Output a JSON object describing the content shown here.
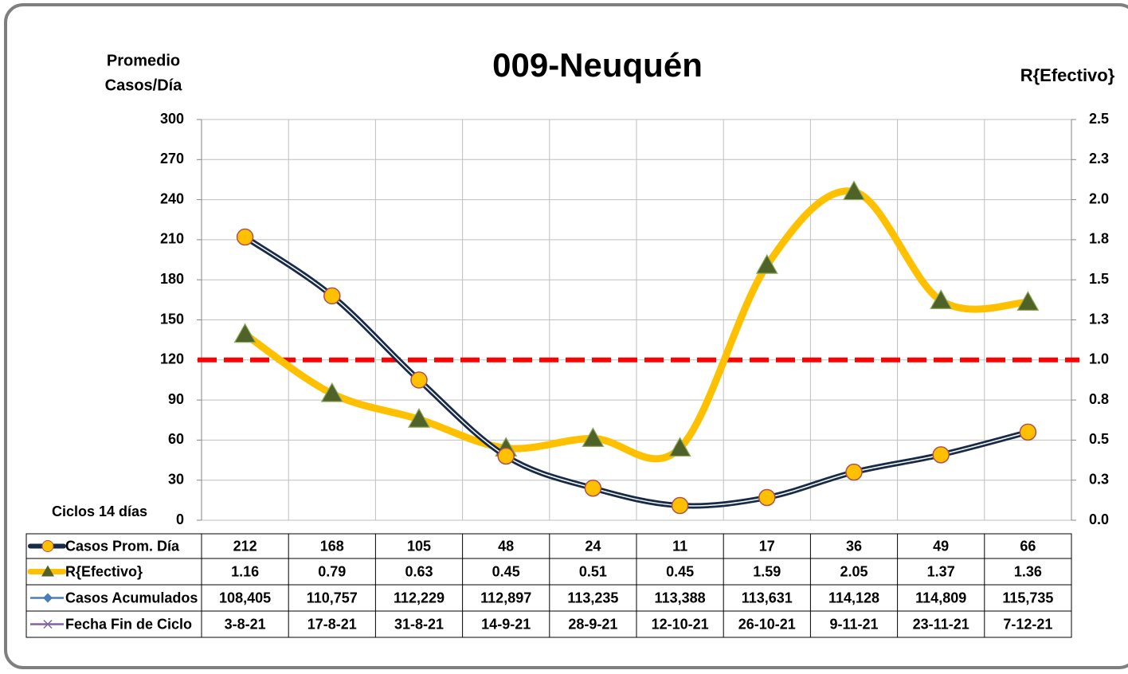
{
  "chart_data": {
    "type": "line",
    "title": "009-Neuquén",
    "y_label": [
      "Promedio",
      "Casos/Día"
    ],
    "y2_label": "R{Efectivo}",
    "x_label": "Ciclos 14 días",
    "categories": [
      "3-8-21",
      "17-8-21",
      "31-8-21",
      "14-9-21",
      "28-9-21",
      "12-10-21",
      "26-10-21",
      "9-11-21",
      "23-11-21",
      "7-12-21"
    ],
    "category_legend": {
      "name": "Fecha Fin de Ciclo",
      "color": "#8064a2"
    },
    "series": [
      {
        "name": "Casos Prom. Día",
        "color": "#172a48",
        "marker_color": "#ffc000",
        "values": [
          212,
          168,
          105,
          48,
          24,
          11,
          17,
          36,
          49,
          66
        ]
      },
      {
        "name": "R{Efectivo}",
        "axis": "y2",
        "color": "#ffc000",
        "marker_color": "#4f6228",
        "values": [
          1.16,
          0.79,
          0.63,
          0.45,
          0.51,
          0.45,
          1.59,
          2.05,
          1.37,
          1.36
        ]
      },
      {
        "name": "Casos Acumulados",
        "color": "#4a7ebb",
        "plotted": false,
        "values": [
          108405,
          110757,
          112229,
          112897,
          113235,
          113388,
          113631,
          114128,
          114809,
          115735
        ],
        "value_labels": [
          "108,405",
          "110,757",
          "112,229",
          "112,897",
          "113,235",
          "113,388",
          "113,631",
          "114,128",
          "114,809",
          "115,735"
        ]
      }
    ],
    "ylim": [
      0,
      300
    ],
    "yticks": [
      0,
      30,
      60,
      90,
      120,
      150,
      180,
      210,
      240,
      270,
      300
    ],
    "y2lim": [
      0,
      2.5
    ],
    "y2ticks": [
      {
        "value": 0,
        "label": "0.0"
      },
      {
        "value": 0.25,
        "label": "0.3"
      },
      0.5,
      {
        "value": 0.75,
        "label": "0.8"
      },
      {
        "value": 1,
        "label": "1.0"
      },
      {
        "value": 1.25,
        "label": "1.3"
      },
      1.5,
      {
        "value": 1.75,
        "label": "1.8"
      },
      {
        "value": 2,
        "label": "2.0"
      },
      {
        "value": 2.25,
        "label": "2.3"
      },
      2.5
    ],
    "reference_line": {
      "axis": "y2",
      "value": 1,
      "color": "#ff0000"
    },
    "grid": true
  }
}
